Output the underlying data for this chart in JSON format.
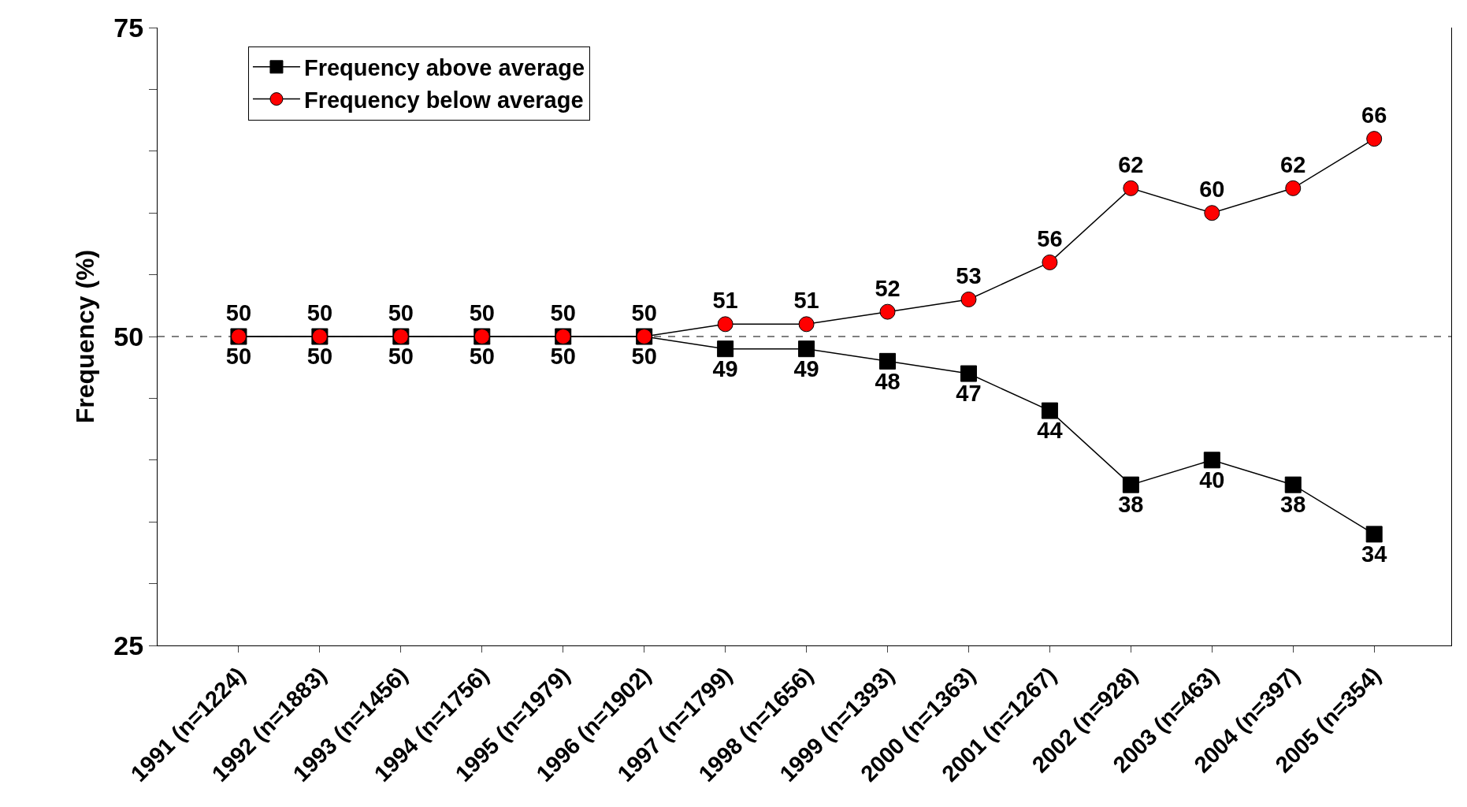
{
  "chart_data": {
    "type": "line",
    "ylabel": "Frequency (%)",
    "categories": [
      "1991 (n=1224)",
      "1992 (n=1883)",
      "1993 (n=1456)",
      "1994 (n=1756)",
      "1995 (n=1979)",
      "1996 (n=1902)",
      "1997 (n=1799)",
      "1998 (n=1656)",
      "1999 (n=1393)",
      "2000 (n=1363)",
      "2001 (n=1267)",
      "2002 (n=928)",
      "2003 (n=463)",
      "2004 (n=397)",
      "2005 (n=354)"
    ],
    "series": [
      {
        "name": "Frequency above average",
        "color": "#000000",
        "marker": "square",
        "values": [
          50,
          50,
          50,
          50,
          50,
          50,
          49,
          49,
          48,
          47,
          44,
          38,
          40,
          38,
          34
        ]
      },
      {
        "name": "Frequency below average",
        "color": "#ff0000",
        "marker": "circle",
        "values": [
          50,
          50,
          50,
          50,
          50,
          50,
          51,
          51,
          52,
          53,
          56,
          62,
          60,
          62,
          66
        ]
      }
    ],
    "ylim": [
      25,
      75
    ],
    "yticks": [
      25,
      {
        "value": 30,
        "label": null
      },
      {
        "value": 35,
        "label": null
      },
      {
        "value": 40,
        "label": null
      },
      {
        "value": 45,
        "label": null
      },
      50,
      {
        "value": 55,
        "label": null
      },
      {
        "value": 60,
        "label": null
      },
      {
        "value": 65,
        "label": null
      },
      {
        "value": 70,
        "label": null
      },
      75
    ],
    "ref_lines": [
      {
        "axis": "y",
        "value": 50,
        "line_style": "dashed",
        "color": "#000000"
      }
    ],
    "data_labels": true,
    "grid": false,
    "legend": "top left",
    "line_style": "solid"
  }
}
